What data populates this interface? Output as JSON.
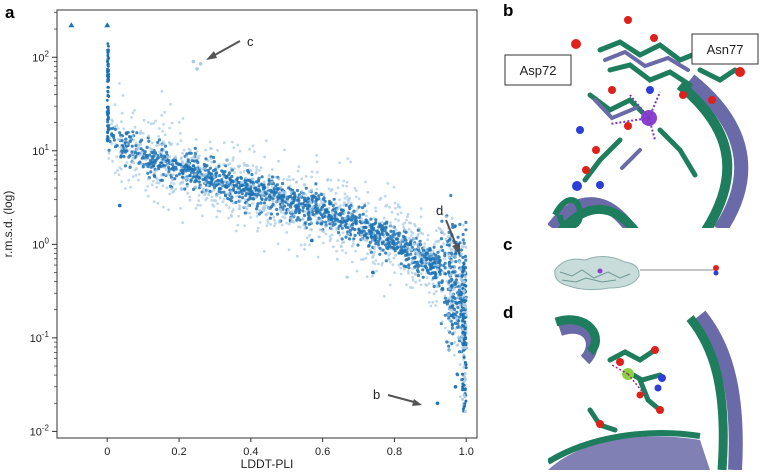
{
  "panels": {
    "a": "a",
    "b": "b",
    "c": "c",
    "d": "d"
  },
  "chart_data": {
    "type": "scatter",
    "xlabel": "LDDT-PLI",
    "ylabel": "r.m.s.d. (log)",
    "xlim": [
      -0.14,
      1.03
    ],
    "ylim": [
      0.0085,
      320
    ],
    "yscale": "log",
    "x_ticks": [
      {
        "value": 0,
        "label": "0"
      },
      {
        "value": 0.2,
        "label": "0.2"
      },
      {
        "value": 0.4,
        "label": "0.4"
      },
      {
        "value": 0.6,
        "label": "0.6"
      },
      {
        "value": 0.8,
        "label": "0.8"
      },
      {
        "value": 1.0,
        "label": "1.0"
      }
    ],
    "y_ticks": [
      {
        "value": 0.01,
        "base": "10",
        "exp": "-2"
      },
      {
        "value": 0.1,
        "base": "10",
        "exp": "-1"
      },
      {
        "value": 1,
        "base": "10",
        "exp": "0"
      },
      {
        "value": 10,
        "base": "10",
        "exp": "1"
      },
      {
        "value": 100,
        "base": "10",
        "exp": "2"
      }
    ],
    "trend": [
      {
        "x": 0.0,
        "y": 14
      },
      {
        "x": 0.1,
        "y": 9
      },
      {
        "x": 0.2,
        "y": 6.5
      },
      {
        "x": 0.3,
        "y": 5
      },
      {
        "x": 0.4,
        "y": 3.9
      },
      {
        "x": 0.5,
        "y": 3.0
      },
      {
        "x": 0.6,
        "y": 2.3
      },
      {
        "x": 0.7,
        "y": 1.6
      },
      {
        "x": 0.8,
        "y": 1.05
      },
      {
        "x": 0.9,
        "y": 0.65
      },
      {
        "x": 0.95,
        "y": 0.45
      },
      {
        "x": 1.0,
        "y": 0.2
      }
    ],
    "outliers": [
      {
        "x": -0.1,
        "y": 220,
        "marker": "triangle"
      },
      {
        "x": 0.0,
        "y": 220,
        "marker": "triangle"
      },
      {
        "x": 0.24,
        "y": 90
      },
      {
        "x": 0.26,
        "y": 85
      },
      {
        "x": 0.25,
        "y": 75
      },
      {
        "x": 0.035,
        "y": 2.6
      },
      {
        "x": 0.57,
        "y": 1.1
      },
      {
        "x": 0.74,
        "y": 0.5
      },
      {
        "x": 0.92,
        "y": 0.02
      },
      {
        "x": 0.97,
        "y": 0.03
      }
    ],
    "annotations": [
      {
        "label": "c",
        "x": 0.26,
        "y": 90
      },
      {
        "label": "d",
        "x": 1.0,
        "y": 0.65
      },
      {
        "label": "b",
        "x": 0.93,
        "y": 0.02
      }
    ]
  },
  "callouts": {
    "residue_1": "Asp72",
    "residue_2": "Asn77"
  },
  "colors": {
    "point_dark": "#1f73b4",
    "point_light": "#a9cbe6",
    "protein_green": "#1e7d5c",
    "protein_purple": "#6b6aa8",
    "oxygen": "#e0201b",
    "nitrogen": "#2b3fd6",
    "ion": "#8a3fd0",
    "ligand_green": "#8ad33a"
  }
}
